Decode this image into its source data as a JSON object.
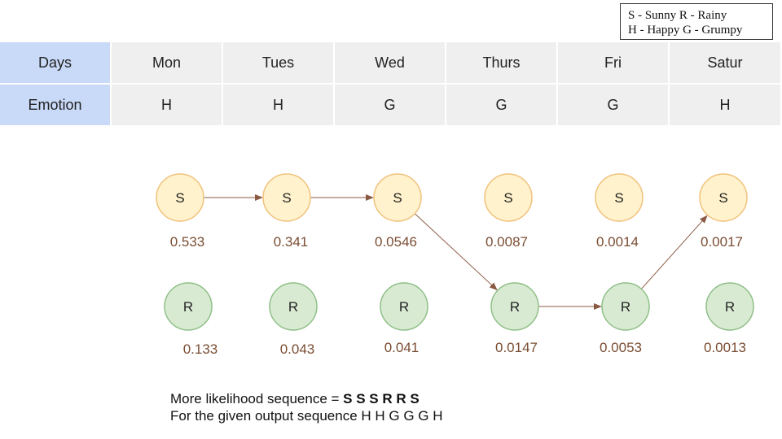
{
  "legend": {
    "line1": "S - Sunny  R - Rainy",
    "line2": "H - Happy G - Grumpy"
  },
  "table": {
    "row_headers": [
      "Days",
      "Emotion"
    ],
    "days": [
      "Mon",
      "Tues",
      "Wed",
      "Thurs",
      "Fri",
      "Satur"
    ],
    "emotions": [
      "H",
      "H",
      "G",
      "G",
      "G",
      "H"
    ]
  },
  "diagram": {
    "sunny_label": "S",
    "rainy_label": "R",
    "sunny_probs": [
      "0.533",
      "0.341",
      "0.0546",
      "0.0087",
      "0.0014",
      "0.0017"
    ],
    "rainy_probs": [
      "0.133",
      "0.043",
      "0.041",
      "0.0147",
      "0.0053",
      "0.0013"
    ],
    "path": [
      "S",
      "S",
      "S",
      "R",
      "R",
      "S"
    ],
    "colors": {
      "sunny_fill": "#fff2cc",
      "sunny_stroke": "#f1c27d",
      "rainy_fill": "#d9ead3",
      "rainy_stroke": "#8fbf87",
      "arrow": "#8b5a44",
      "prob_text": "#7a4d33"
    }
  },
  "footer": {
    "line1_prefix": "More likelihood sequence = ",
    "line1_sequence": "S S S R R S",
    "line2": "For the given output sequence H H G G G H"
  }
}
